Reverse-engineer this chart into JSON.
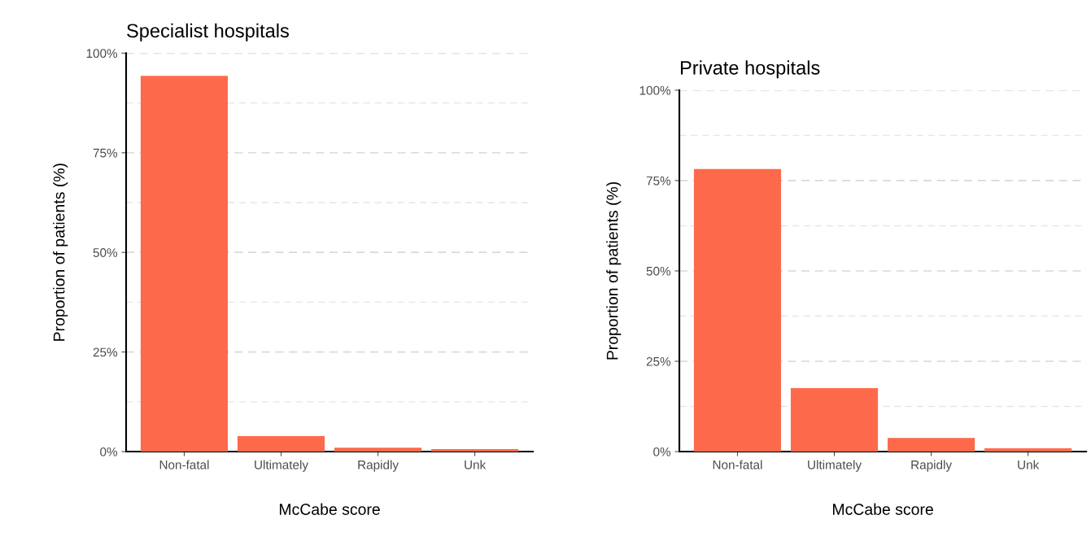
{
  "chart_data": [
    {
      "type": "bar",
      "title": "Specialist hospitals",
      "xlabel": "McCabe score",
      "ylabel": "Proportion of patients (%)",
      "categories": [
        "Non-fatal",
        "Ultimately",
        "Rapidly",
        "Unk"
      ],
      "values": [
        94.3,
        3.9,
        1.0,
        0.6
      ],
      "color": "#fc6a4b",
      "ylim": [
        0,
        100
      ],
      "yticks": [
        {
          "value": 0,
          "label": "0%"
        },
        {
          "value": 25,
          "label": "25%"
        },
        {
          "value": 50,
          "label": "50%"
        },
        {
          "value": 75,
          "label": "75%"
        },
        {
          "value": 100,
          "label": "100%"
        }
      ],
      "grid": "y"
    },
    {
      "type": "bar",
      "title": "Private hospitals",
      "xlabel": "McCabe score",
      "ylabel": "Proportion of patients (%)",
      "categories": [
        "Non-fatal",
        "Ultimately",
        "Rapidly",
        "Unk"
      ],
      "values": [
        78.2,
        17.6,
        3.8,
        0.9
      ],
      "color": "#fc6a4b",
      "ylim": [
        0,
        100
      ],
      "yticks": [
        {
          "value": 0,
          "label": "0%"
        },
        {
          "value": 25,
          "label": "25%"
        },
        {
          "value": 50,
          "label": "50%"
        },
        {
          "value": 75,
          "label": "75%"
        },
        {
          "value": 100,
          "label": "100%"
        }
      ],
      "grid": "y"
    }
  ]
}
